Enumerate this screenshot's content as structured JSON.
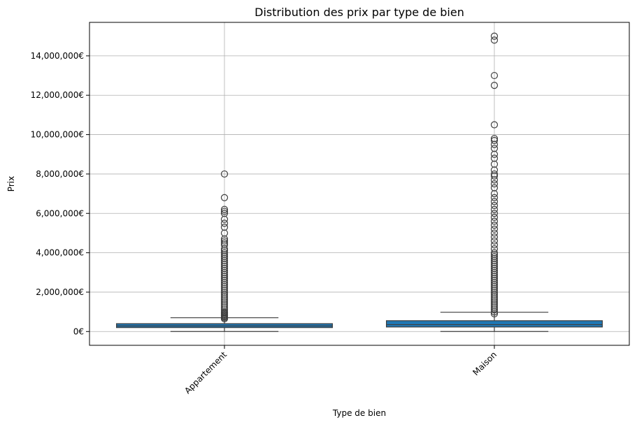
{
  "chart_data": {
    "type": "box",
    "title": "Distribution des prix par type de bien",
    "xlabel": "Type de bien",
    "ylabel": "Prix",
    "ylim": [
      -700000,
      15700000
    ],
    "yticks": [
      0,
      2000000,
      4000000,
      6000000,
      8000000,
      10000000,
      12000000,
      14000000
    ],
    "ytick_labels": [
      "0€",
      "2,000,000€",
      "4,000,000€",
      "6,000,000€",
      "8,000,000€",
      "10,000,000€",
      "12,000,000€",
      "14,000,000€"
    ],
    "grid": true,
    "color": "#1f77b4",
    "categories": [
      "Appartement",
      "Maison"
    ],
    "boxes": [
      {
        "category": "Appartement",
        "min": 0,
        "q1": 200000,
        "median": 280000,
        "q3": 400000,
        "max": 700000,
        "outliers": [
          650000,
          700000,
          750000,
          800000,
          850000,
          900000,
          950000,
          1000000,
          1100000,
          1200000,
          1300000,
          1400000,
          1500000,
          1600000,
          1700000,
          1800000,
          1900000,
          2000000,
          2100000,
          2200000,
          2300000,
          2400000,
          2500000,
          2600000,
          2700000,
          2800000,
          2900000,
          3000000,
          3100000,
          3200000,
          3300000,
          3400000,
          3500000,
          3600000,
          3700000,
          3800000,
          3900000,
          4000000,
          4100000,
          4200000,
          4400000,
          4500000,
          4600000,
          4700000,
          5000000,
          5300000,
          5500000,
          5700000,
          6000000,
          6100000,
          6200000,
          6800000,
          8000000
        ]
      },
      {
        "category": "Maison",
        "min": 0,
        "q1": 230000,
        "median": 350000,
        "q3": 550000,
        "max": 980000,
        "outliers": [
          900000,
          1000000,
          1100000,
          1200000,
          1300000,
          1400000,
          1500000,
          1600000,
          1700000,
          1800000,
          1900000,
          2000000,
          2100000,
          2200000,
          2300000,
          2400000,
          2500000,
          2600000,
          2700000,
          2800000,
          2900000,
          3000000,
          3100000,
          3200000,
          3300000,
          3400000,
          3500000,
          3600000,
          3700000,
          3800000,
          3900000,
          4000000,
          4200000,
          4400000,
          4600000,
          4800000,
          5000000,
          5200000,
          5400000,
          5600000,
          5800000,
          6000000,
          6200000,
          6400000,
          6600000,
          6800000,
          7000000,
          7300000,
          7500000,
          7700000,
          7900000,
          8000000,
          8200000,
          8500000,
          8800000,
          9000000,
          9300000,
          9500000,
          9700000,
          9800000,
          10500000,
          12500000,
          13000000,
          14800000,
          15000000
        ]
      }
    ]
  }
}
